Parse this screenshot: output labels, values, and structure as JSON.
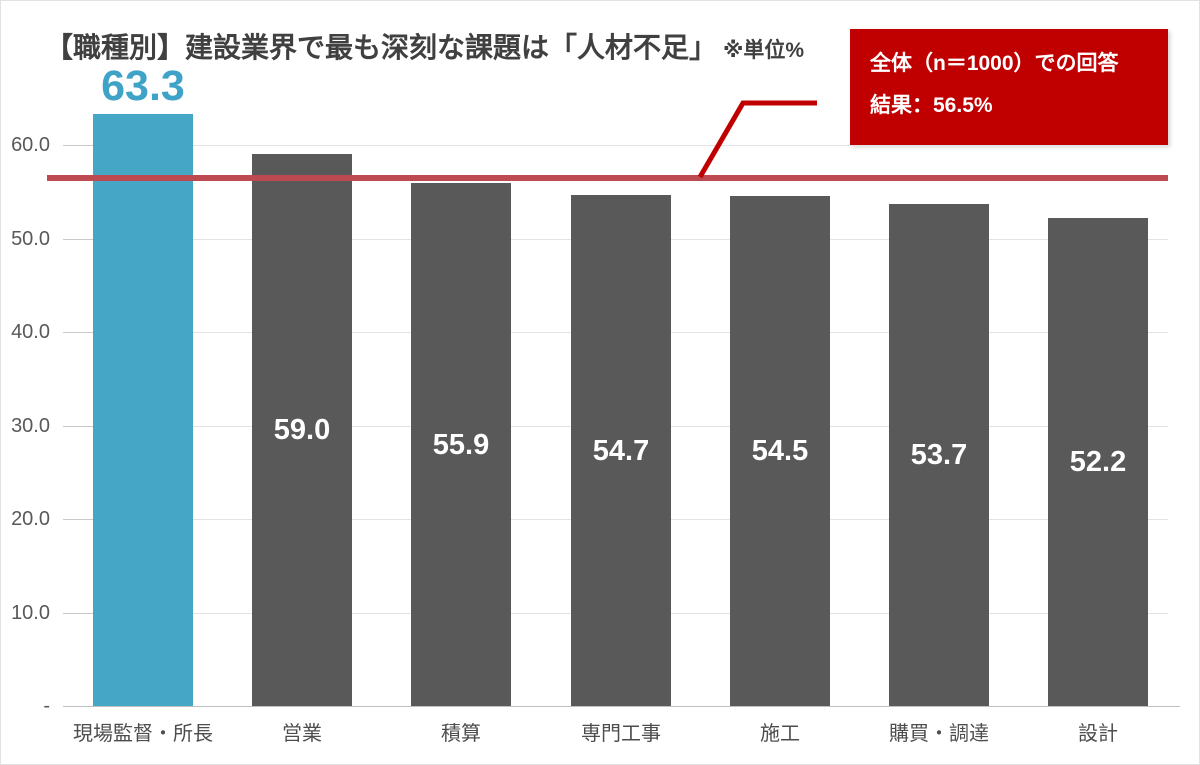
{
  "header": {
    "title": "【職種別】建設業界で最も深刻な課題は「人材不足」",
    "unit_note": "※単位%"
  },
  "annotation": {
    "line1": "全体（n＝1000）での回答",
    "line2": "結果：56.5%"
  },
  "colors": {
    "highlight_bar": "#45A6C6",
    "highlight_value_text": "#3FA3C8",
    "default_bar": "#595959",
    "annotation_bg": "#C00000",
    "reference_line": "#BC4A50",
    "callout_line": "#C00000",
    "gridline": "#e3e3e3",
    "axis_text": "#595959",
    "title_text": "#404040"
  },
  "chart_data": {
    "type": "bar",
    "title": "【職種別】建設業界で最も深刻な課題は「人材不足」",
    "unit": "%",
    "categories": [
      "現場監督・所長",
      "営業",
      "積算",
      "専門工事",
      "施工",
      "購買・調達",
      "設計"
    ],
    "values": [
      63.3,
      59.0,
      55.9,
      54.7,
      54.5,
      53.7,
      52.2
    ],
    "value_labels": [
      "63.3",
      "59.0",
      "55.9",
      "54.7",
      "54.5",
      "53.7",
      "52.2"
    ],
    "highlight_index": 0,
    "ylim": [
      0,
      65
    ],
    "yticks": [
      {
        "value": 60,
        "label": "60.0"
      },
      {
        "value": 50,
        "label": "50.0"
      },
      {
        "value": 40,
        "label": "40.0"
      },
      {
        "value": 30,
        "label": "30.0"
      },
      {
        "value": 20,
        "label": "20.0"
      },
      {
        "value": 10,
        "label": "10.0"
      },
      {
        "value": 0,
        "label": "-"
      }
    ],
    "grid": true,
    "legend": "none",
    "reference_line": {
      "value": 56.5,
      "label": "全体（n＝1000）での回答結果：56.5%"
    }
  }
}
